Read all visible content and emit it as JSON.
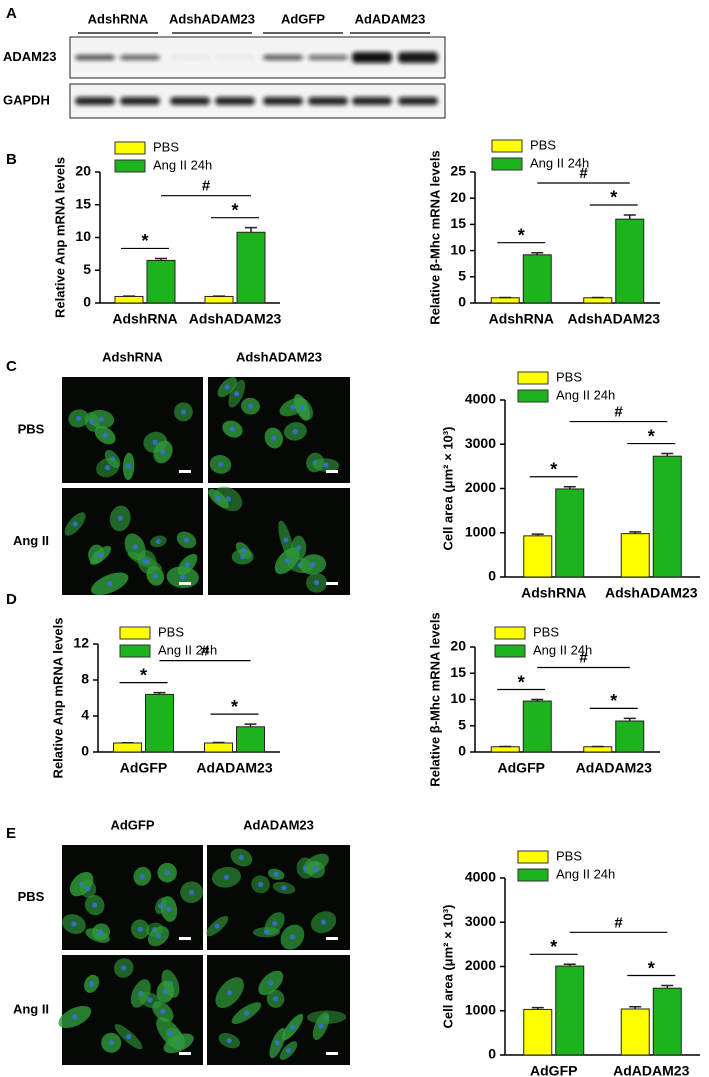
{
  "panels": [
    "A",
    "B",
    "C",
    "D",
    "E"
  ],
  "blot": {
    "lanes": [
      "AdshRNA",
      "AdshADAM23",
      "AdGFP",
      "AdADAM23"
    ],
    "rows": [
      "ADAM23",
      "GAPDH"
    ]
  },
  "micrographs": [
    {
      "columns": [
        "AdshRNA",
        "AdshADAM23"
      ],
      "rows": [
        "PBS",
        "Ang II"
      ]
    },
    {
      "columns": [
        "AdGFP",
        "AdADAM23"
      ],
      "rows": [
        "PBS",
        "Ang II"
      ]
    }
  ],
  "chart_data": [
    {
      "type": "bar",
      "ylabel": "Relative Anp mRNA levels",
      "categories": [
        "AdshRNA",
        "AdshADAM23"
      ],
      "series": [
        {
          "name": "PBS",
          "color": "#ffff00",
          "values": [
            1,
            1
          ],
          "errors": [
            0.05,
            0.05
          ]
        },
        {
          "name": "Ang II 24h",
          "color": "#1db31d",
          "values": [
            6.5,
            10.8
          ],
          "errors": [
            0.3,
            0.7
          ]
        }
      ],
      "ylim": [
        0,
        20
      ],
      "yticks": [
        0,
        5,
        10,
        15,
        20
      ],
      "annotations": {
        "within": [
          "*",
          "*"
        ],
        "between": "#"
      }
    },
    {
      "type": "bar",
      "ylabel": "Relative β-Mhc mRNA levels",
      "categories": [
        "AdshRNA",
        "AdshADAM23"
      ],
      "series": [
        {
          "name": "PBS",
          "color": "#ffff00",
          "values": [
            1,
            1
          ],
          "errors": [
            0.05,
            0.05
          ]
        },
        {
          "name": "Ang II 24h",
          "color": "#1db31d",
          "values": [
            9.2,
            16
          ],
          "errors": [
            0.4,
            0.8
          ]
        }
      ],
      "ylim": [
        0,
        25
      ],
      "yticks": [
        0,
        5,
        10,
        15,
        20,
        25
      ],
      "annotations": {
        "within": [
          "*",
          "*"
        ],
        "between": "#"
      }
    },
    {
      "type": "bar",
      "ylabel": "Cell area (μm² × 10³)",
      "categories": [
        "AdshRNA",
        "AdshADAM23"
      ],
      "series": [
        {
          "name": "PBS",
          "color": "#ffff00",
          "values": [
            930,
            980
          ],
          "errors": [
            40,
            40
          ]
        },
        {
          "name": "Ang II 24h",
          "color": "#1db31d",
          "values": [
            1990,
            2730
          ],
          "errors": [
            50,
            60
          ]
        }
      ],
      "ylim": [
        0,
        4000
      ],
      "yticks": [
        0,
        1000,
        2000,
        3000,
        4000
      ],
      "annotations": {
        "within": [
          "*",
          "*"
        ],
        "between": "#"
      }
    },
    {
      "type": "bar",
      "ylabel": "Relative Anp mRNA levels",
      "categories": [
        "AdGFP",
        "AdADAM23"
      ],
      "series": [
        {
          "name": "PBS",
          "color": "#ffff00",
          "values": [
            1,
            1
          ],
          "errors": [
            0.03,
            0.05
          ]
        },
        {
          "name": "Ang II 24h",
          "color": "#1db31d",
          "values": [
            6.4,
            2.8
          ],
          "errors": [
            0.2,
            0.3
          ]
        }
      ],
      "ylim": [
        0,
        12
      ],
      "yticks": [
        0,
        4,
        8,
        12
      ],
      "annotations": {
        "within": [
          "*",
          "*"
        ],
        "between": "#"
      }
    },
    {
      "type": "bar",
      "ylabel": "Relative β-Mhc mRNA levels",
      "categories": [
        "AdGFP",
        "AdADAM23"
      ],
      "series": [
        {
          "name": "PBS",
          "color": "#ffff00",
          "values": [
            1,
            1
          ],
          "errors": [
            0.05,
            0.05
          ]
        },
        {
          "name": "Ang II 24h",
          "color": "#1db31d",
          "values": [
            9.7,
            5.9
          ],
          "errors": [
            0.3,
            0.5
          ]
        }
      ],
      "ylim": [
        0,
        20
      ],
      "yticks": [
        0,
        5,
        10,
        15,
        20
      ],
      "annotations": {
        "within": [
          "*",
          "*"
        ],
        "between": "#"
      }
    },
    {
      "type": "bar",
      "ylabel": "Cell area (μm² × 10³)",
      "categories": [
        "AdGFP",
        "AdADAM23"
      ],
      "series": [
        {
          "name": "PBS",
          "color": "#ffff00",
          "values": [
            1030,
            1040
          ],
          "errors": [
            40,
            50
          ]
        },
        {
          "name": "Ang II 24h",
          "color": "#1db31d",
          "values": [
            2010,
            1510
          ],
          "errors": [
            40,
            60
          ]
        }
      ],
      "ylim": [
        0,
        4000
      ],
      "yticks": [
        0,
        1000,
        2000,
        3000,
        4000
      ],
      "annotations": {
        "within": [
          "*",
          "*"
        ],
        "between": "#"
      }
    }
  ]
}
